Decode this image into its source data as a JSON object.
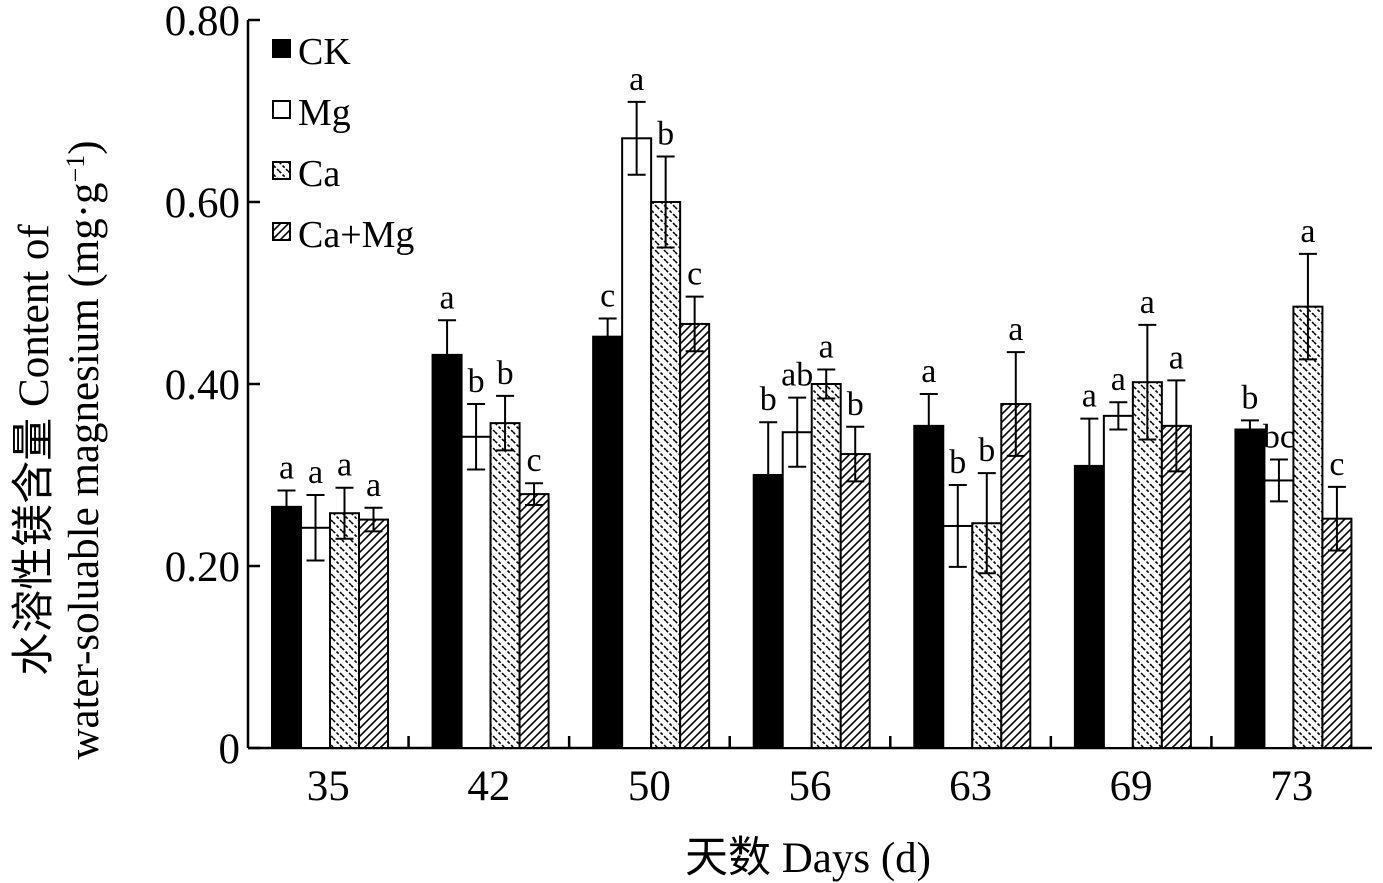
{
  "chart_data": {
    "type": "bar",
    "xlabel": "天数  Days (d)",
    "ylabel_line1": "水溶性镁含量 Content of",
    "ylabel_line2": "water-soluable magnesium (mg·g",
    "ylabel_sup": "−1",
    "ylabel_close": ")",
    "ylim": [
      0,
      0.8
    ],
    "yticks": [
      0,
      0.2,
      0.4,
      0.6,
      0.8
    ],
    "ytick_labels": [
      "0",
      "0.20",
      "0.40",
      "0.60",
      "0.80"
    ],
    "categories": [
      "35",
      "42",
      "50",
      "56",
      "63",
      "69",
      "73"
    ],
    "legend_position": "top-left",
    "series": [
      {
        "name": "CK",
        "pattern": "solid",
        "values": [
          0.265,
          0.432,
          0.452,
          0.3,
          0.354,
          0.31,
          0.35
        ],
        "errors": [
          0.018,
          0.038,
          0.02,
          0.058,
          0.035,
          0.052,
          0.01
        ],
        "letters": [
          "a",
          "a",
          "c",
          "b",
          "a",
          "a",
          "b"
        ]
      },
      {
        "name": "Mg",
        "pattern": "open",
        "values": [
          0.242,
          0.342,
          0.67,
          0.347,
          0.244,
          0.365,
          0.294
        ],
        "errors": [
          0.036,
          0.036,
          0.04,
          0.038,
          0.045,
          0.015,
          0.023
        ],
        "letters": [
          "a",
          "b",
          "a",
          "ab",
          "b",
          "a",
          "bc"
        ]
      },
      {
        "name": "Ca",
        "pattern": "backslash",
        "values": [
          0.258,
          0.357,
          0.6,
          0.4,
          0.247,
          0.402,
          0.485
        ],
        "errors": [
          0.028,
          0.03,
          0.05,
          0.016,
          0.055,
          0.063,
          0.058
        ],
        "letters": [
          "a",
          "b",
          "b",
          "a",
          "b",
          "a",
          "a"
        ]
      },
      {
        "name": "Ca+Mg",
        "pattern": "slash",
        "values": [
          0.251,
          0.279,
          0.466,
          0.323,
          0.378,
          0.354,
          0.252
        ],
        "errors": [
          0.013,
          0.012,
          0.03,
          0.03,
          0.057,
          0.05,
          0.035
        ],
        "letters": [
          "a",
          "c",
          "c",
          "b",
          "a",
          "a",
          "c"
        ]
      }
    ]
  }
}
